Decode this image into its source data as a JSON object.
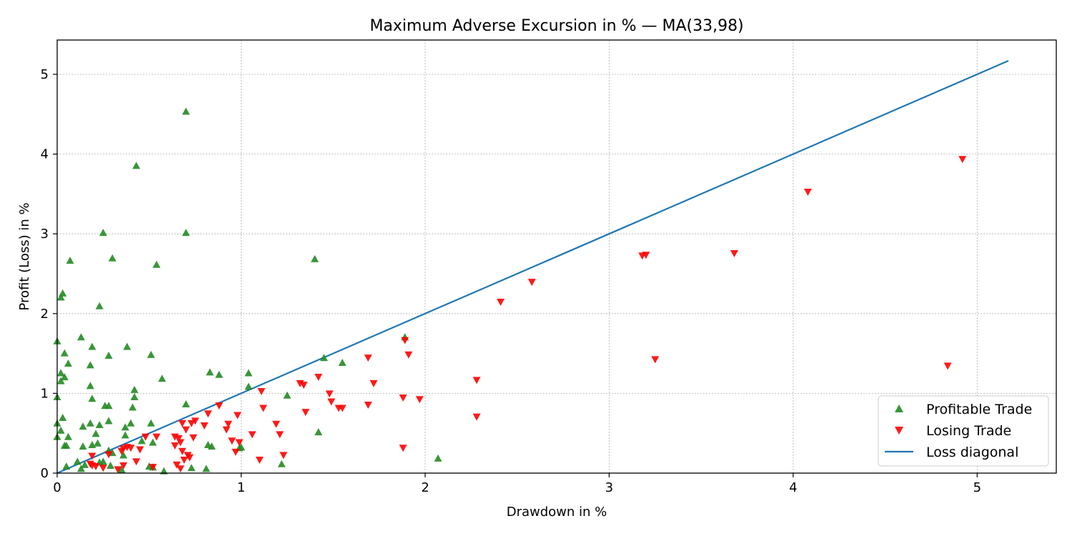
{
  "chart_data": {
    "type": "scatter",
    "title": "Maximum Adverse Excursion in % — MA(33,98)",
    "xlabel": "Drawdown in %",
    "ylabel": "Profit (Loss) in %",
    "xlim": [
      0,
      5.43
    ],
    "ylim": [
      0,
      5.43
    ],
    "xticks": [
      "0",
      "1",
      "2",
      "3",
      "4",
      "5"
    ],
    "yticks": [
      "0",
      "1",
      "2",
      "3",
      "4",
      "5"
    ],
    "grid": true,
    "legend_position": "lower-right",
    "series": [
      {
        "name": "Profitable Trade",
        "marker": "triangle-up",
        "color": "#228b22",
        "points": [
          [
            0.7,
            4.53
          ],
          [
            0.43,
            3.85
          ],
          [
            0.25,
            3.01
          ],
          [
            0.7,
            3.01
          ],
          [
            0.3,
            2.69
          ],
          [
            0.07,
            2.66
          ],
          [
            0.54,
            2.61
          ],
          [
            1.4,
            2.68
          ],
          [
            0.02,
            2.2
          ],
          [
            0.03,
            2.25
          ],
          [
            0.23,
            2.09
          ],
          [
            0.13,
            1.7
          ],
          [
            0.19,
            1.58
          ],
          [
            0.38,
            1.58
          ],
          [
            0.0,
            1.65
          ],
          [
            0.04,
            1.5
          ],
          [
            0.28,
            1.47
          ],
          [
            0.51,
            1.48
          ],
          [
            0.06,
            1.37
          ],
          [
            0.18,
            1.35
          ],
          [
            1.55,
            1.38
          ],
          [
            1.45,
            1.44
          ],
          [
            1.89,
            1.7
          ],
          [
            0.02,
            1.25
          ],
          [
            0.04,
            1.2
          ],
          [
            0.02,
            1.15
          ],
          [
            0.57,
            1.18
          ],
          [
            0.83,
            1.26
          ],
          [
            0.88,
            1.23
          ],
          [
            1.04,
            1.25
          ],
          [
            0.18,
            1.09
          ],
          [
            0.42,
            1.04
          ],
          [
            1.04,
            1.08
          ],
          [
            0.0,
            0.95
          ],
          [
            0.19,
            0.93
          ],
          [
            0.42,
            0.95
          ],
          [
            1.25,
            0.97
          ],
          [
            0.26,
            0.84
          ],
          [
            0.28,
            0.84
          ],
          [
            0.41,
            0.82
          ],
          [
            0.7,
            0.86
          ],
          [
            0.03,
            0.69
          ],
          [
            0.28,
            0.65
          ],
          [
            0.0,
            0.62
          ],
          [
            0.14,
            0.58
          ],
          [
            0.18,
            0.62
          ],
          [
            0.23,
            0.6
          ],
          [
            0.37,
            0.57
          ],
          [
            0.4,
            0.62
          ],
          [
            0.51,
            0.62
          ],
          [
            0.02,
            0.53
          ],
          [
            0.21,
            0.49
          ],
          [
            0.37,
            0.47
          ],
          [
            0.0,
            0.45
          ],
          [
            0.06,
            0.45
          ],
          [
            0.46,
            0.4
          ],
          [
            0.52,
            0.38
          ],
          [
            0.05,
            0.34
          ],
          [
            0.04,
            0.34
          ],
          [
            0.14,
            0.33
          ],
          [
            0.19,
            0.35
          ],
          [
            0.22,
            0.37
          ],
          [
            0.82,
            0.35
          ],
          [
            0.84,
            0.33
          ],
          [
            0.99,
            0.31
          ],
          [
            0.3,
            0.25
          ],
          [
            0.28,
            0.28
          ],
          [
            0.36,
            0.22
          ],
          [
            0.11,
            0.14
          ],
          [
            0.15,
            0.1
          ],
          [
            0.23,
            0.13
          ],
          [
            0.25,
            0.14
          ],
          [
            0.29,
            0.09
          ],
          [
            0.05,
            0.08
          ],
          [
            0.13,
            0.05
          ],
          [
            0.35,
            0.04
          ],
          [
            0.5,
            0.08
          ],
          [
            0.52,
            0.07
          ],
          [
            0.58,
            0.02
          ],
          [
            0.73,
            0.06
          ],
          [
            0.81,
            0.05
          ],
          [
            1.22,
            0.11
          ],
          [
            1.42,
            0.51
          ],
          [
            2.07,
            0.18
          ],
          [
            1.0,
            0.32
          ]
        ]
      },
      {
        "name": "Losing Trade",
        "marker": "triangle-down",
        "color": "#ff0000",
        "points": [
          [
            4.92,
            3.94
          ],
          [
            4.08,
            3.53
          ],
          [
            3.68,
            2.76
          ],
          [
            3.18,
            2.73
          ],
          [
            3.2,
            2.74
          ],
          [
            2.58,
            2.4
          ],
          [
            2.41,
            2.15
          ],
          [
            3.25,
            1.43
          ],
          [
            4.84,
            1.35
          ],
          [
            1.89,
            1.67
          ],
          [
            1.91,
            1.49
          ],
          [
            1.69,
            1.45
          ],
          [
            1.42,
            1.21
          ],
          [
            1.32,
            1.13
          ],
          [
            1.34,
            1.11
          ],
          [
            1.72,
            1.13
          ],
          [
            2.28,
            1.17
          ],
          [
            1.11,
            1.03
          ],
          [
            1.48,
            1.0
          ],
          [
            1.88,
            0.95
          ],
          [
            1.97,
            0.93
          ],
          [
            1.49,
            0.9
          ],
          [
            1.55,
            0.82
          ],
          [
            1.53,
            0.82
          ],
          [
            1.69,
            0.86
          ],
          [
            1.12,
            0.82
          ],
          [
            1.35,
            0.77
          ],
          [
            0.98,
            0.73
          ],
          [
            0.82,
            0.75
          ],
          [
            0.88,
            0.85
          ],
          [
            0.93,
            0.62
          ],
          [
            0.75,
            0.66
          ],
          [
            0.73,
            0.63
          ],
          [
            2.28,
            0.71
          ],
          [
            1.19,
            0.62
          ],
          [
            0.68,
            0.63
          ],
          [
            0.8,
            0.6
          ],
          [
            0.92,
            0.55
          ],
          [
            0.7,
            0.55
          ],
          [
            0.64,
            0.46
          ],
          [
            0.66,
            0.44
          ],
          [
            0.74,
            0.45
          ],
          [
            0.54,
            0.46
          ],
          [
            0.48,
            0.46
          ],
          [
            1.06,
            0.49
          ],
          [
            1.21,
            0.49
          ],
          [
            0.95,
            0.41
          ],
          [
            0.99,
            0.39
          ],
          [
            0.67,
            0.39
          ],
          [
            0.64,
            0.35
          ],
          [
            0.38,
            0.33
          ],
          [
            0.36,
            0.31
          ],
          [
            0.35,
            0.28
          ],
          [
            0.4,
            0.32
          ],
          [
            0.45,
            0.3
          ],
          [
            0.68,
            0.28
          ],
          [
            0.71,
            0.23
          ],
          [
            0.97,
            0.27
          ],
          [
            0.28,
            0.24
          ],
          [
            0.19,
            0.22
          ],
          [
            1.23,
            0.23
          ],
          [
            1.88,
            0.32
          ],
          [
            0.18,
            0.12
          ],
          [
            0.19,
            0.1
          ],
          [
            0.21,
            0.09
          ],
          [
            0.25,
            0.07
          ],
          [
            0.33,
            0.05
          ],
          [
            0.43,
            0.15
          ],
          [
            0.52,
            0.08
          ],
          [
            0.65,
            0.11
          ],
          [
            0.69,
            0.17
          ],
          [
            0.72,
            0.2
          ],
          [
            1.1,
            0.17
          ],
          [
            0.67,
            0.06
          ],
          [
            0.36,
            0.1
          ]
        ]
      }
    ],
    "lines": [
      {
        "name": "Loss diagonal",
        "color": "#1f77b4",
        "x": [
          0,
          5.17
        ],
        "y": [
          0,
          5.17
        ]
      }
    ]
  }
}
